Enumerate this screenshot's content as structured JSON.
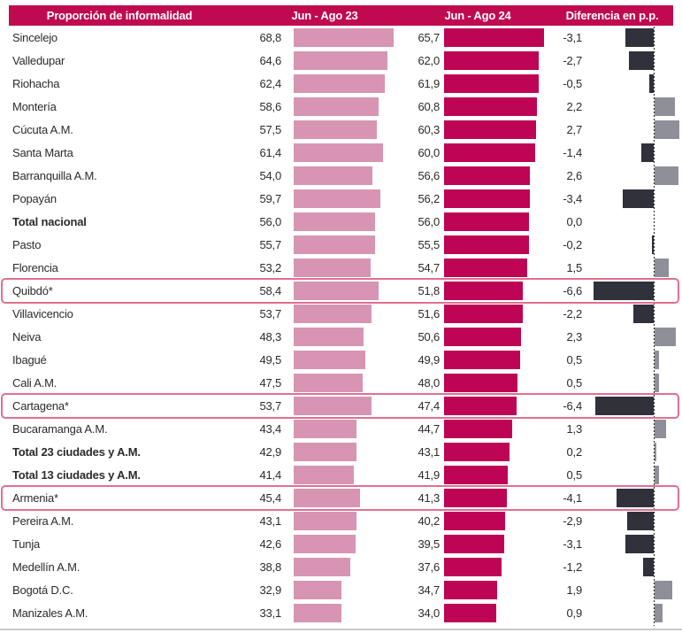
{
  "chart_data": {
    "type": "bar",
    "orientation": "horizontal",
    "title": "Proporción de informalidad",
    "decimal_separator": ",",
    "categories": [
      "Sincelejo",
      "Valledupar",
      "Riohacha",
      "Montería",
      "Cúcuta A.M.",
      "Santa Marta",
      "Barranquilla A.M.",
      "Popayán",
      "Total nacional",
      "Pasto",
      "Florencia",
      "Quibdó*",
      "Villavicencio",
      "Neiva",
      "Ibagué",
      "Cali A.M.",
      "Cartagena*",
      "Bucaramanga A.M.",
      "Total 23 ciudades y A.M.",
      "Total 13 ciudades y A.M.",
      "Armenia*",
      "Pereira A.M.",
      "Tunja",
      "Medellín A.M.",
      "Bogotá D.C.",
      "Manizales A.M."
    ],
    "series": [
      {
        "name": "Jun - Ago 23",
        "color": "#D795B3",
        "values": [
          68.8,
          64.6,
          62.4,
          58.6,
          57.5,
          61.4,
          54.0,
          59.7,
          56.0,
          55.7,
          53.2,
          58.4,
          53.7,
          48.3,
          49.5,
          47.5,
          53.7,
          43.4,
          42.9,
          41.4,
          45.4,
          43.1,
          42.6,
          38.8,
          32.9,
          33.1
        ]
      },
      {
        "name": "Jun - Ago 24",
        "color": "#BE0455",
        "values": [
          65.7,
          62.0,
          61.9,
          60.8,
          60.3,
          60.0,
          56.6,
          56.2,
          56.0,
          55.5,
          54.7,
          51.8,
          51.6,
          50.6,
          49.9,
          48.0,
          47.4,
          44.7,
          43.1,
          41.9,
          41.3,
          40.2,
          39.5,
          37.6,
          34.7,
          34.0
        ]
      },
      {
        "name": "Diferencia en p.p.",
        "color_negative": "#31313C",
        "color_positive": "#8F8F9A",
        "values": [
          -3.1,
          -2.7,
          -0.5,
          2.2,
          2.7,
          -1.4,
          2.6,
          -3.4,
          0.0,
          -0.2,
          1.5,
          -6.6,
          -2.2,
          2.3,
          0.5,
          0.5,
          -6.4,
          1.3,
          0.2,
          0.5,
          -4.1,
          -2.9,
          -3.1,
          -1.2,
          1.9,
          0.9
        ]
      }
    ],
    "bold_categories": [
      "Total nacional",
      "Total 23 ciudades y A.M.",
      "Total 13 ciudades y A.M."
    ],
    "highlighted_categories": [
      "Quibdó*",
      "Cartagena*",
      "Armenia*"
    ],
    "xlim": [
      0,
      70
    ],
    "diff_axis": {
      "baseline": 0,
      "style": "dotted"
    },
    "legend_position": "header-row",
    "grid": false
  },
  "colors": {
    "header_bg": "#C00A50",
    "header_text": "#FFFFFF",
    "bar_2023": "#D795B3",
    "bar_2024": "#BE0455",
    "diff_negative": "#31313C",
    "diff_positive": "#8F8F9A",
    "highlight_border": "#E0708F",
    "text": "#2B2B2B",
    "bottom_rule": "#C9C9C9"
  }
}
